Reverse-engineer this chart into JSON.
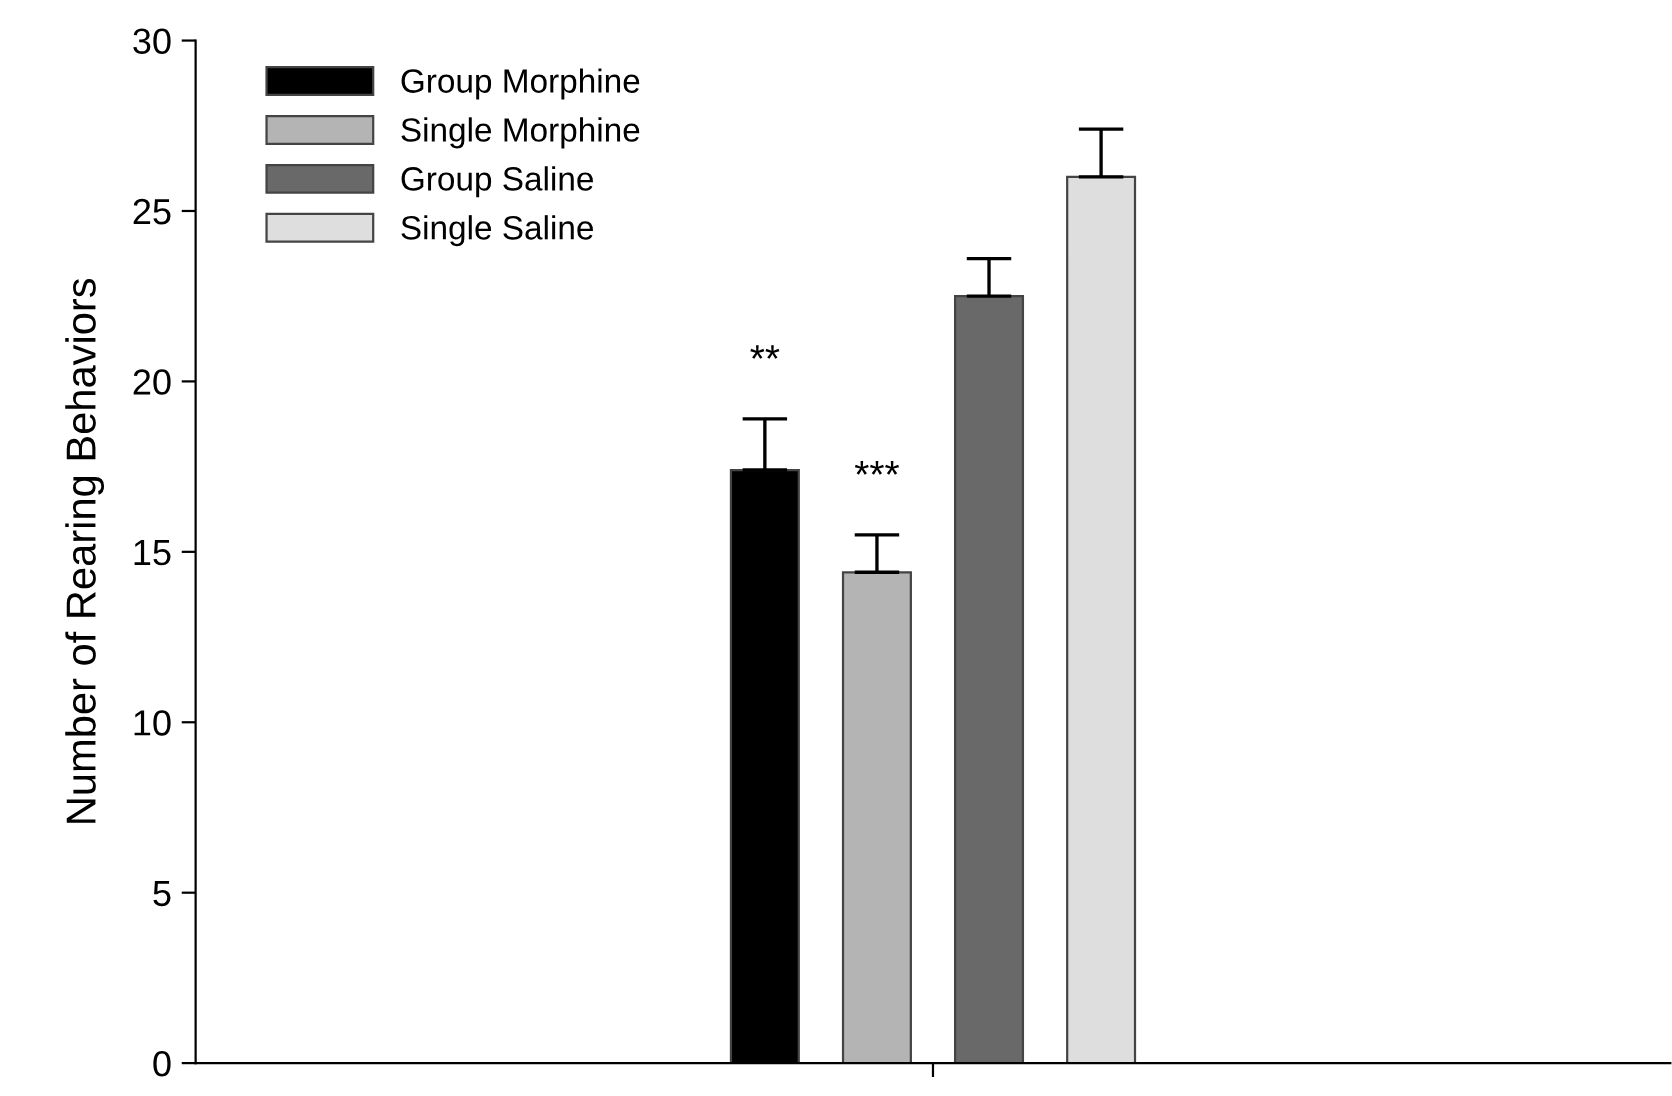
{
  "chart_data": {
    "type": "bar",
    "ylabel": "Number of Rearing Behaviors",
    "categories": [
      null
    ],
    "series": [
      {
        "name": "Group Morphine",
        "color": "#000000",
        "values": [
          17.4
        ],
        "errors": [
          [
            17.4,
            18.9
          ]
        ]
      },
      {
        "name": "Single Morphine",
        "color": "#b4b4b4",
        "values": [
          14.4
        ],
        "errors": [
          [
            14.4,
            15.5
          ]
        ]
      },
      {
        "name": "Group Saline",
        "color": "#696969",
        "values": [
          22.5
        ],
        "errors": [
          [
            22.5,
            23.6
          ]
        ]
      },
      {
        "name": "Single Saline",
        "color": "#dedede",
        "values": [
          26.0
        ],
        "errors": [
          [
            26.0,
            27.4
          ]
        ]
      }
    ],
    "annotations": [
      "**",
      "***"
    ],
    "ylim": [
      0,
      30
    ],
    "yticks": [
      0,
      5,
      10,
      15,
      20,
      25,
      30
    ],
    "grid": false,
    "legend": "top left"
  }
}
